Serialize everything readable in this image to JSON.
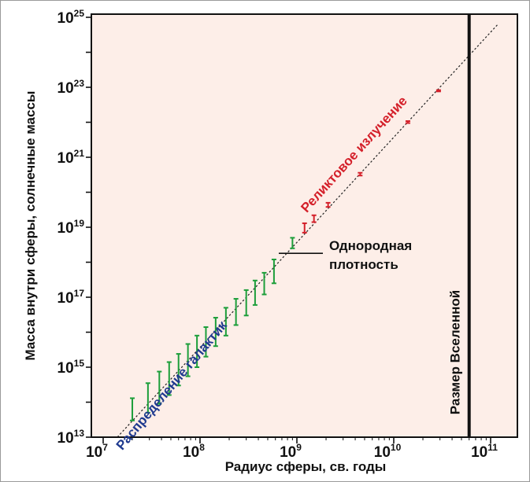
{
  "chart_data": {
    "type": "scatter",
    "title": "",
    "xlabel": "Радиус сферы, св. годы",
    "ylabel": "Масса внутри сферы, солнечные массы",
    "x_scale": "log",
    "y_scale": "log",
    "xlim": [
      10000000.0,
      120000000000.0
    ],
    "ylim": [
      10000000000000.0,
      1e+25
    ],
    "x_ticks": [
      {
        "base": "10",
        "exp": "7"
      },
      {
        "base": "10",
        "exp": "8"
      },
      {
        "base": "10",
        "exp": "9"
      },
      {
        "base": "10",
        "exp": "10"
      },
      {
        "base": "10",
        "exp": "11"
      }
    ],
    "y_ticks": [
      {
        "base": "10",
        "exp": "13"
      },
      {
        "base": "10",
        "exp": "15"
      },
      {
        "base": "10",
        "exp": "17"
      },
      {
        "base": "10",
        "exp": "19"
      },
      {
        "base": "10",
        "exp": "21"
      },
      {
        "base": "10",
        "exp": "23"
      },
      {
        "base": "10",
        "exp": "25"
      }
    ],
    "grid": false,
    "background_color": "#fdeee8",
    "reference_line": {
      "style": "dotted",
      "label": "Однородная плотность",
      "points": [
        [
          14000000.0,
          10000000000000.0
        ],
        [
          120000000000.0,
          6.5e+24
        ]
      ]
    },
    "universe_size": {
      "x": 60000000000.0,
      "label": "Размер Вселенной"
    },
    "series": [
      {
        "name": "Распределение галактик",
        "color": "#1c9e3a",
        "label_color": "#1f3a8f",
        "points": [
          {
            "x": 20000000.0,
            "y_low": 30000000000000.0,
            "y_high": 130000000000000.0
          },
          {
            "x": 29000000.0,
            "y_low": 50000000000000.0,
            "y_high": 350000000000000.0
          },
          {
            "x": 38000000.0,
            "y_low": 90000000000000.0,
            "y_high": 750000000000000.0
          },
          {
            "x": 48000000.0,
            "y_low": 160000000000000.0,
            "y_high": 1400000000000000.0
          },
          {
            "x": 60000000.0,
            "y_low": 300000000000000.0,
            "y_high": 2400000000000000.0
          },
          {
            "x": 75000000.0,
            "y_low": 550000000000000.0,
            "y_high": 4600000000000000.0
          },
          {
            "x": 93000000.0,
            "y_low": 1000000000000000.0,
            "y_high": 8000000000000000.0
          },
          {
            "x": 115000000.0,
            "y_low": 2000000000000000.0,
            "y_high": 1.4e+16
          },
          {
            "x": 145000000.0,
            "y_low": 4000000000000000.0,
            "y_high": 2.6e+16
          },
          {
            "x": 185000000.0,
            "y_low": 8000000000000000.0,
            "y_high": 5e+16
          },
          {
            "x": 235000000.0,
            "y_low": 1.6e+16,
            "y_high": 9e+16
          },
          {
            "x": 300000000.0,
            "y_low": 3e+16,
            "y_high": 1.6e+17
          },
          {
            "x": 370000000.0,
            "y_low": 6e+16,
            "y_high": 3e+17
          },
          {
            "x": 460000000.0,
            "y_low": 1.2e+17,
            "y_high": 5e+17
          },
          {
            "x": 580000000.0,
            "y_low": 2.5e+17,
            "y_high": 1.2e+18
          },
          {
            "x": 900000000.0,
            "y_low": 2.5e+18,
            "y_high": 5e+18
          }
        ]
      },
      {
        "name": "Реликтовое излучение",
        "color": "#d4202a",
        "label_color": "#d4202a",
        "points": [
          {
            "x": 1200000000.0,
            "y_low": 7e+18,
            "y_high": 1.3e+19
          },
          {
            "x": 1500000000.0,
            "y_low": 1.4e+19,
            "y_high": 2.2e+19
          },
          {
            "x": 2100000000.0,
            "y_low": 3.8e+19,
            "y_high": 5e+19
          },
          {
            "x": 4500000000.0,
            "y_low": 3e+20,
            "y_high": 3.6e+20
          },
          {
            "x": 14000000000.0,
            "y_low": 9.5e+21,
            "y_high": 1.08e+22
          },
          {
            "x": 29000000000.0,
            "y_low": 7.6e+22,
            "y_high": 8.3e+22
          }
        ]
      }
    ]
  }
}
